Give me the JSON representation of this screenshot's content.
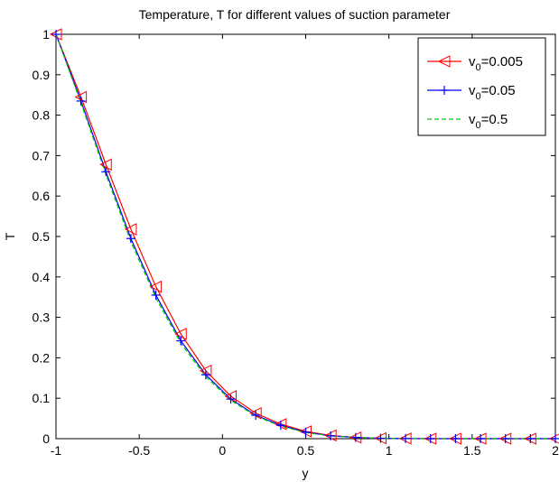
{
  "chart_data": {
    "type": "line",
    "title": "Temperature, T  for different values of suction parameter",
    "xlabel": "y",
    "ylabel": "T",
    "xlim": [
      -1,
      2
    ],
    "ylim": [
      0,
      1
    ],
    "x_ticks": [
      -1,
      -0.5,
      0,
      0.5,
      1,
      1.5,
      2
    ],
    "x_tick_labels": [
      "-1",
      "-0.5",
      "0",
      "0.5",
      "1",
      "1.5",
      "2"
    ],
    "y_ticks": [
      0,
      0.1,
      0.2,
      0.3,
      0.4,
      0.5,
      0.6,
      0.7,
      0.8,
      0.9,
      1
    ],
    "y_tick_labels": [
      "0",
      "0.1",
      "0.2",
      "0.3",
      "0.4",
      "0.5",
      "0.6",
      "0.7",
      "0.8",
      "0.9",
      "1"
    ],
    "grid": false,
    "legend_position": "top-right",
    "x": [
      -1,
      -0.85,
      -0.7,
      -0.55,
      -0.4,
      -0.25,
      -0.1,
      0.05,
      0.2,
      0.35,
      0.5,
      0.65,
      0.8,
      0.95,
      1.1,
      1.25,
      1.4,
      1.55,
      1.7,
      1.85,
      2
    ],
    "series": [
      {
        "legend": {
          "main": "v",
          "sub": "0",
          "rest": "=0.005"
        },
        "color": "#ff0000",
        "marker": "triangle-left",
        "line_style": "solid",
        "values": [
          1.0,
          0.845,
          0.678,
          0.518,
          0.376,
          0.259,
          0.168,
          0.105,
          0.063,
          0.036,
          0.018,
          0.008,
          0.003,
          0.001,
          0.0003,
          0,
          0,
          0,
          0,
          0,
          0
        ]
      },
      {
        "legend": {
          "main": "v",
          "sub": "0",
          "rest": "=0.05"
        },
        "color": "#0000ff",
        "marker": "plus",
        "line_style": "solid",
        "values": [
          1.0,
          0.835,
          0.66,
          0.495,
          0.355,
          0.242,
          0.158,
          0.098,
          0.058,
          0.033,
          0.016,
          0.007,
          0.003,
          0.001,
          0.0003,
          0,
          0,
          0,
          0,
          0,
          0
        ]
      },
      {
        "legend": {
          "main": "v",
          "sub": "0",
          "rest": "=0.5"
        },
        "color": "#00cc00",
        "marker": "none",
        "line_style": "dashed",
        "values": [
          1.0,
          0.83,
          0.653,
          0.487,
          0.348,
          0.236,
          0.153,
          0.095,
          0.056,
          0.031,
          0.015,
          0.007,
          0.003,
          0.001,
          0.0003,
          0,
          0,
          0,
          0,
          0,
          0
        ]
      }
    ]
  }
}
